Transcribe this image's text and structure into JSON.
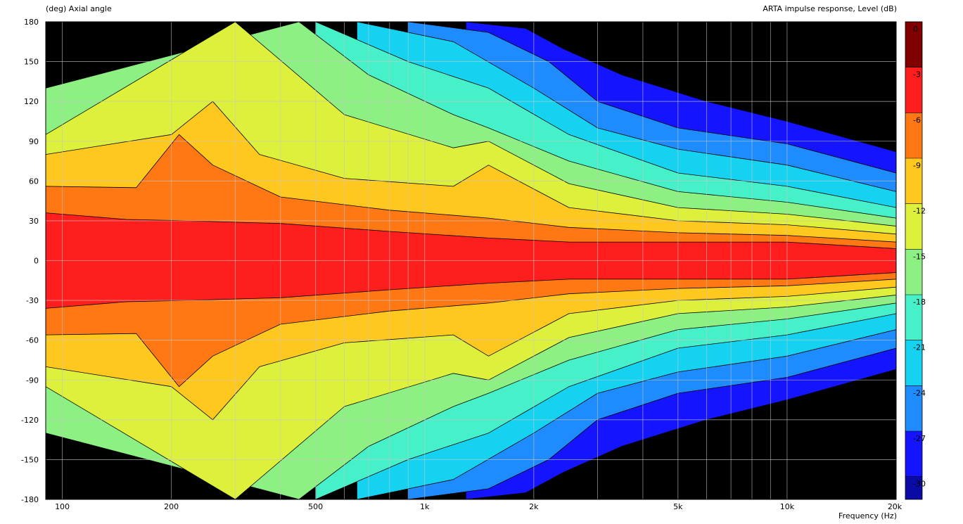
{
  "chart_data": {
    "type": "heatmap",
    "title": "ARTA impulse response, Level  (dB)",
    "ylabel": "(deg)  Axial angle",
    "xlabel": "Frequency  (Hz)",
    "x_scale": "log",
    "xlim": [
      90,
      20000
    ],
    "ylim": [
      -180,
      180
    ],
    "x_ticks": [
      {
        "label": "100",
        "value": 100
      },
      {
        "label": "200",
        "value": 200
      },
      {
        "label": "500",
        "value": 500
      },
      {
        "label": "1k",
        "value": 1000
      },
      {
        "label": "2k",
        "value": 2000
      },
      {
        "label": "5k",
        "value": 5000
      },
      {
        "label": "10k",
        "value": 10000
      },
      {
        "label": "20k",
        "value": 20000
      }
    ],
    "x_minor_grid": [
      300,
      400,
      600,
      700,
      800,
      900,
      3000,
      4000,
      6000,
      7000,
      8000,
      9000
    ],
    "y_ticks": [
      180,
      150,
      120,
      90,
      60,
      30,
      0,
      -30,
      -60,
      -90,
      -120,
      -150,
      -180
    ],
    "colorbar": {
      "labels": [
        "0",
        "-3",
        "-6",
        "-9",
        "-12",
        "-15",
        "-18",
        "-21",
        "-24",
        "-27",
        "-30"
      ],
      "levels": [
        0,
        -3,
        -6,
        -9,
        -12,
        -15,
        -18,
        -21,
        -24,
        -27,
        -30
      ],
      "colors": [
        "#800000",
        "#ff1e1e",
        "#ff7814",
        "#ffc81e",
        "#dcf03c",
        "#8cf082",
        "#46f0c8",
        "#14d2f0",
        "#1e8cff",
        "#1414ff",
        "#0a0aa5",
        "#000000"
      ]
    },
    "level_contours_db": [
      {
        "level": -3,
        "points": [
          [
            90,
            36
          ],
          [
            150,
            31
          ],
          [
            220,
            30
          ],
          [
            400,
            28
          ],
          [
            800,
            22
          ],
          [
            1500,
            17
          ],
          [
            2500,
            14
          ],
          [
            5000,
            14
          ],
          [
            10000,
            14
          ],
          [
            20000,
            9
          ]
        ]
      },
      {
        "level": -6,
        "points": [
          [
            90,
            56
          ],
          [
            160,
            55
          ],
          [
            210,
            95
          ],
          [
            260,
            72
          ],
          [
            400,
            48
          ],
          [
            800,
            38
          ],
          [
            1500,
            32
          ],
          [
            2500,
            25
          ],
          [
            5000,
            21
          ],
          [
            10000,
            19
          ],
          [
            20000,
            14
          ]
        ]
      },
      {
        "level": -9,
        "points": [
          [
            90,
            80
          ],
          [
            200,
            95
          ],
          [
            260,
            120
          ],
          [
            350,
            80
          ],
          [
            600,
            62
          ],
          [
            1200,
            56
          ],
          [
            1500,
            72
          ],
          [
            2500,
            40
          ],
          [
            5000,
            30
          ],
          [
            10000,
            27
          ],
          [
            20000,
            20
          ]
        ]
      },
      {
        "level": -12,
        "points": [
          [
            90,
            95
          ],
          [
            300,
            180
          ],
          [
            600,
            110
          ],
          [
            1200,
            85
          ],
          [
            1500,
            90
          ],
          [
            2500,
            58
          ],
          [
            5000,
            40
          ],
          [
            10000,
            35
          ],
          [
            20000,
            26
          ]
        ]
      },
      {
        "level": -15,
        "points": [
          [
            90,
            130
          ],
          [
            450,
            180
          ],
          [
            700,
            140
          ],
          [
            1200,
            110
          ],
          [
            1500,
            100
          ],
          [
            2500,
            75
          ],
          [
            5000,
            52
          ],
          [
            10000,
            44
          ],
          [
            20000,
            32
          ]
        ]
      },
      {
        "level": -18,
        "points": [
          [
            500,
            180
          ],
          [
            900,
            150
          ],
          [
            1500,
            130
          ],
          [
            2500,
            95
          ],
          [
            5000,
            66
          ],
          [
            10000,
            56
          ],
          [
            20000,
            40
          ]
        ]
      },
      {
        "level": -21,
        "points": [
          [
            650,
            180
          ],
          [
            1200,
            165
          ],
          [
            2000,
            130
          ],
          [
            3000,
            100
          ],
          [
            5000,
            84
          ],
          [
            10000,
            72
          ],
          [
            20000,
            52
          ]
        ]
      },
      {
        "level": -24,
        "points": [
          [
            900,
            180
          ],
          [
            1500,
            172
          ],
          [
            2200,
            150
          ],
          [
            3000,
            120
          ],
          [
            5000,
            100
          ],
          [
            10000,
            88
          ],
          [
            20000,
            66
          ]
        ]
      },
      {
        "level": -27,
        "points": [
          [
            1300,
            180
          ],
          [
            1900,
            175
          ],
          [
            2400,
            160
          ],
          [
            3500,
            140
          ],
          [
            6000,
            120
          ],
          [
            10000,
            105
          ],
          [
            20000,
            82
          ]
        ]
      }
    ]
  }
}
